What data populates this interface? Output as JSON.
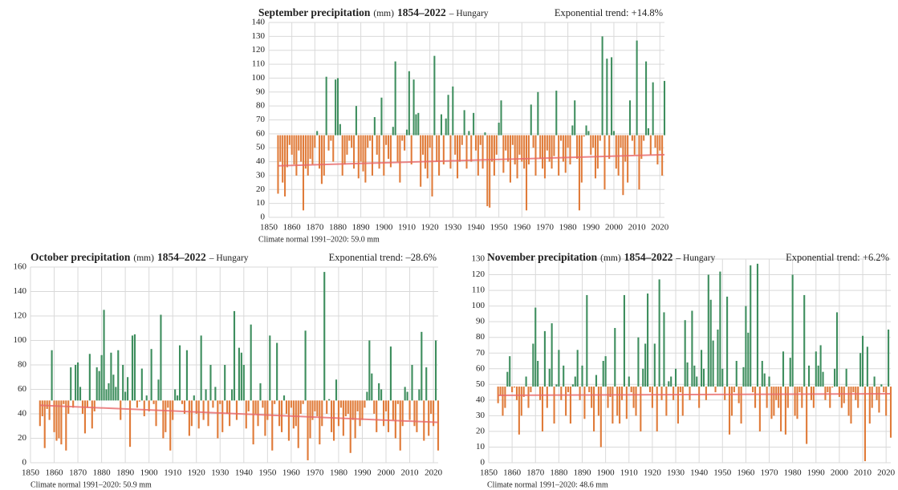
{
  "chart_data": [
    {
      "type": "bar",
      "title": "September precipitation",
      "unit": "(mm)",
      "period": "1854–2022",
      "region": "– Hungary",
      "trend_label": "Exponential trend: +14.8%",
      "note": "Climate normal 1991–2020: 59.0 mm",
      "baseline": 59,
      "trend_line": [
        37,
        45
      ],
      "trend_color": "#e8696a",
      "color_above": "#3e8e5e",
      "color_below": "#e07b39",
      "grid": true,
      "xlim": [
        1850,
        2022
      ],
      "xticks": [
        1850,
        1860,
        1870,
        1880,
        1890,
        1900,
        1910,
        1920,
        1930,
        1940,
        1950,
        1960,
        1970,
        1980,
        1990,
        2000,
        2010,
        2020
      ],
      "ylim": [
        0,
        140
      ],
      "yticks": [
        0,
        10,
        20,
        30,
        40,
        50,
        60,
        70,
        80,
        90,
        100,
        110,
        120,
        130,
        140
      ],
      "x": [
        1854,
        1855,
        1856,
        1857,
        1858,
        1859,
        1860,
        1861,
        1862,
        1863,
        1864,
        1865,
        1866,
        1867,
        1868,
        1869,
        1870,
        1871,
        1872,
        1873,
        1874,
        1875,
        1876,
        1877,
        1878,
        1879,
        1880,
        1881,
        1882,
        1883,
        1884,
        1885,
        1886,
        1887,
        1888,
        1889,
        1890,
        1891,
        1892,
        1893,
        1894,
        1895,
        1896,
        1897,
        1898,
        1899,
        1900,
        1901,
        1902,
        1903,
        1904,
        1905,
        1906,
        1907,
        1908,
        1909,
        1910,
        1911,
        1912,
        1913,
        1914,
        1915,
        1916,
        1917,
        1918,
        1919,
        1920,
        1921,
        1922,
        1923,
        1924,
        1925,
        1926,
        1927,
        1928,
        1929,
        1930,
        1931,
        1932,
        1933,
        1934,
        1935,
        1936,
        1937,
        1938,
        1939,
        1940,
        1941,
        1942,
        1943,
        1944,
        1945,
        1946,
        1947,
        1948,
        1949,
        1950,
        1951,
        1952,
        1953,
        1954,
        1955,
        1956,
        1957,
        1958,
        1959,
        1960,
        1961,
        1962,
        1963,
        1964,
        1965,
        1966,
        1967,
        1968,
        1969,
        1970,
        1971,
        1972,
        1973,
        1974,
        1975,
        1976,
        1977,
        1978,
        1979,
        1980,
        1981,
        1982,
        1983,
        1984,
        1985,
        1986,
        1987,
        1988,
        1989,
        1990,
        1991,
        1992,
        1993,
        1994,
        1995,
        1996,
        1997,
        1998,
        1999,
        2000,
        2001,
        2002,
        2003,
        2004,
        2005,
        2006,
        2007,
        2008,
        2009,
        2010,
        2011,
        2012,
        2013,
        2014,
        2015,
        2016,
        2017,
        2018,
        2019,
        2020,
        2021,
        2022
      ],
      "values": [
        17,
        40,
        25,
        15,
        36,
        52,
        45,
        38,
        30,
        48,
        40,
        5,
        35,
        30,
        42,
        38,
        50,
        62,
        35,
        24,
        30,
        101,
        48,
        55,
        40,
        99,
        100,
        67,
        30,
        38,
        45,
        55,
        50,
        35,
        80,
        28,
        40,
        33,
        25,
        50,
        55,
        30,
        72,
        45,
        35,
        86,
        30,
        52,
        42,
        36,
        65,
        112,
        40,
        25,
        55,
        48,
        63,
        105,
        38,
        99,
        74,
        75,
        22,
        45,
        35,
        28,
        50,
        15,
        116,
        40,
        30,
        74,
        38,
        71,
        88,
        35,
        94,
        45,
        28,
        40,
        52,
        77,
        35,
        62,
        40,
        75,
        48,
        30,
        52,
        35,
        61,
        8,
        7,
        40,
        30,
        45,
        68,
        84,
        32,
        48,
        40,
        25,
        52,
        38,
        28,
        45,
        40,
        35,
        5,
        38,
        81,
        50,
        30,
        90,
        42,
        35,
        28,
        48,
        40,
        35,
        44,
        91,
        30,
        55,
        40,
        32,
        50,
        38,
        66,
        84,
        42,
        5,
        25,
        58,
        66,
        62,
        45,
        50,
        28,
        35,
        55,
        130,
        20,
        114,
        42,
        115,
        62,
        35,
        30,
        50,
        16,
        40,
        25,
        84,
        55,
        45,
        127,
        20,
        42,
        55,
        112,
        64,
        45,
        97,
        50,
        38,
        48,
        30,
        98
      ]
    },
    {
      "type": "bar",
      "title": "October precipitation",
      "unit": "(mm)",
      "period": "1854–2022",
      "region": "– Hungary",
      "trend_label": "Exponential trend: –28.6%",
      "note": "Climate normal 1991–2020: 50.9 mm",
      "baseline": 50.9,
      "trend_line": [
        47,
        33
      ],
      "trend_color": "#e8696a",
      "color_above": "#3e8e5e",
      "color_below": "#e07b39",
      "grid": true,
      "xlim": [
        1850,
        2022
      ],
      "xticks": [
        1850,
        1860,
        1870,
        1880,
        1890,
        1900,
        1910,
        1920,
        1930,
        1940,
        1950,
        1960,
        1970,
        1980,
        1990,
        2000,
        2010,
        2020
      ],
      "ylim": [
        0,
        160
      ],
      "yticks": [
        0,
        20,
        40,
        60,
        80,
        100,
        120,
        140,
        160
      ],
      "x": [
        1854,
        1855,
        1856,
        1857,
        1858,
        1859,
        1860,
        1861,
        1862,
        1863,
        1864,
        1865,
        1866,
        1867,
        1868,
        1869,
        1870,
        1871,
        1872,
        1873,
        1874,
        1875,
        1876,
        1877,
        1878,
        1879,
        1880,
        1881,
        1882,
        1883,
        1884,
        1885,
        1886,
        1887,
        1888,
        1889,
        1890,
        1891,
        1892,
        1893,
        1894,
        1895,
        1896,
        1897,
        1898,
        1899,
        1900,
        1901,
        1902,
        1903,
        1904,
        1905,
        1906,
        1907,
        1908,
        1909,
        1910,
        1911,
        1912,
        1913,
        1914,
        1915,
        1916,
        1917,
        1918,
        1919,
        1920,
        1921,
        1922,
        1923,
        1924,
        1925,
        1926,
        1927,
        1928,
        1929,
        1930,
        1931,
        1932,
        1933,
        1934,
        1935,
        1936,
        1937,
        1938,
        1939,
        1940,
        1941,
        1942,
        1943,
        1944,
        1945,
        1946,
        1947,
        1948,
        1949,
        1950,
        1951,
        1952,
        1953,
        1954,
        1955,
        1956,
        1957,
        1958,
        1959,
        1960,
        1961,
        1962,
        1963,
        1964,
        1965,
        1966,
        1967,
        1968,
        1969,
        1970,
        1971,
        1972,
        1973,
        1974,
        1975,
        1976,
        1977,
        1978,
        1979,
        1980,
        1981,
        1982,
        1983,
        1984,
        1985,
        1986,
        1987,
        1988,
        1989,
        1990,
        1991,
        1992,
        1993,
        1994,
        1995,
        1996,
        1997,
        1998,
        1999,
        2000,
        2001,
        2002,
        2003,
        2004,
        2005,
        2006,
        2007,
        2008,
        2009,
        2010,
        2011,
        2012,
        2013,
        2014,
        2015,
        2016,
        2017,
        2018,
        2019,
        2020,
        2021,
        2022
      ],
      "values": [
        30,
        38,
        12,
        44,
        35,
        92,
        25,
        18,
        20,
        15,
        48,
        10,
        40,
        78,
        45,
        80,
        82,
        62,
        40,
        24,
        45,
        89,
        28,
        42,
        78,
        75,
        88,
        125,
        60,
        65,
        90,
        72,
        62,
        92,
        35,
        80,
        58,
        70,
        13,
        104,
        105,
        45,
        50,
        77,
        38,
        55,
        42,
        93,
        48,
        30,
        68,
        121,
        20,
        25,
        45,
        10,
        35,
        60,
        55,
        96,
        48,
        40,
        92,
        22,
        30,
        55,
        40,
        28,
        104,
        35,
        60,
        30,
        80,
        45,
        62,
        20,
        48,
        25,
        80,
        40,
        30,
        60,
        124,
        35,
        94,
        90,
        80,
        28,
        42,
        113,
        15,
        40,
        30,
        65,
        45,
        22,
        35,
        104,
        10,
        48,
        98,
        30,
        25,
        55,
        40,
        18,
        45,
        28,
        30,
        12,
        40,
        48,
        108,
        2,
        20,
        35,
        42,
        38,
        15,
        30,
        156,
        40,
        52,
        25,
        18,
        68,
        30,
        45,
        22,
        38,
        40,
        8,
        35,
        20,
        42,
        30,
        35,
        45,
        58,
        100,
        73,
        40,
        25,
        65,
        60,
        30,
        42,
        25,
        95,
        35,
        20,
        48,
        10,
        30,
        62,
        58,
        35,
        80,
        30,
        25,
        60,
        107,
        18,
        78,
        22,
        40,
        30,
        100,
        10
      ]
    },
    {
      "type": "bar",
      "title": "November precipitation",
      "unit": "(mm)",
      "period": "1854–2022",
      "region": "– Hungary",
      "trend_label": "Exponential trend: +6.2%",
      "note": "Climate normal 1991–2020: 48.6 mm",
      "baseline": 48.6,
      "trend_line": [
        43,
        44
      ],
      "trend_color": "#e8696a",
      "color_above": "#3e8e5e",
      "color_below": "#e07b39",
      "grid": true,
      "xlim": [
        1850,
        2022
      ],
      "xticks": [
        1850,
        1860,
        1870,
        1880,
        1890,
        1900,
        1910,
        1920,
        1930,
        1940,
        1950,
        1960,
        1970,
        1980,
        1990,
        2000,
        2010,
        2020
      ],
      "ylim": [
        0,
        130
      ],
      "yticks": [
        0,
        10,
        20,
        30,
        40,
        50,
        60,
        70,
        80,
        90,
        100,
        110,
        120,
        130
      ],
      "x": [
        1854,
        1855,
        1856,
        1857,
        1858,
        1859,
        1860,
        1861,
        1862,
        1863,
        1864,
        1865,
        1866,
        1867,
        1868,
        1869,
        1870,
        1871,
        1872,
        1873,
        1874,
        1875,
        1876,
        1877,
        1878,
        1879,
        1880,
        1881,
        1882,
        1883,
        1884,
        1885,
        1886,
        1887,
        1888,
        1889,
        1890,
        1891,
        1892,
        1893,
        1894,
        1895,
        1896,
        1897,
        1898,
        1899,
        1900,
        1901,
        1902,
        1903,
        1904,
        1905,
        1906,
        1907,
        1908,
        1909,
        1910,
        1911,
        1912,
        1913,
        1914,
        1915,
        1916,
        1917,
        1918,
        1919,
        1920,
        1921,
        1922,
        1923,
        1924,
        1925,
        1926,
        1927,
        1928,
        1929,
        1930,
        1931,
        1932,
        1933,
        1934,
        1935,
        1936,
        1937,
        1938,
        1939,
        1940,
        1941,
        1942,
        1943,
        1944,
        1945,
        1946,
        1947,
        1948,
        1949,
        1950,
        1951,
        1952,
        1953,
        1954,
        1955,
        1956,
        1957,
        1958,
        1959,
        1960,
        1961,
        1962,
        1963,
        1964,
        1965,
        1966,
        1967,
        1968,
        1969,
        1970,
        1971,
        1972,
        1973,
        1974,
        1975,
        1976,
        1977,
        1978,
        1979,
        1980,
        1981,
        1982,
        1983,
        1984,
        1985,
        1986,
        1987,
        1988,
        1989,
        1990,
        1991,
        1992,
        1993,
        1994,
        1995,
        1996,
        1997,
        1998,
        1999,
        2000,
        2001,
        2002,
        2003,
        2004,
        2005,
        2006,
        2007,
        2008,
        2009,
        2010,
        2011,
        2012,
        2013,
        2014,
        2015,
        2016,
        2017,
        2018,
        2019,
        2020,
        2021,
        2022
      ],
      "values": [
        38,
        43,
        30,
        35,
        58,
        68,
        45,
        48,
        40,
        18,
        30,
        42,
        55,
        35,
        45,
        76,
        99,
        65,
        40,
        20,
        84,
        35,
        60,
        89,
        25,
        50,
        72,
        40,
        62,
        30,
        45,
        25,
        50,
        55,
        72,
        40,
        62,
        28,
        107,
        45,
        35,
        20,
        56,
        30,
        10,
        65,
        68,
        35,
        42,
        25,
        86,
        30,
        25,
        40,
        107,
        28,
        55,
        45,
        35,
        30,
        80,
        20,
        60,
        76,
        108,
        45,
        35,
        76,
        20,
        117,
        40,
        96,
        30,
        52,
        55,
        40,
        60,
        25,
        45,
        30,
        91,
        64,
        40,
        97,
        62,
        55,
        35,
        72,
        60,
        40,
        120,
        104,
        78,
        45,
        85,
        122,
        60,
        40,
        106,
        18,
        30,
        45,
        65,
        38,
        25,
        61,
        100,
        83,
        126,
        45,
        35,
        127,
        20,
        65,
        57,
        35,
        55,
        28,
        30,
        40,
        35,
        20,
        71,
        18,
        35,
        67,
        120,
        30,
        28,
        45,
        35,
        107,
        12,
        62,
        40,
        35,
        71,
        62,
        75,
        58,
        40,
        45,
        35,
        48,
        60,
        96,
        42,
        35,
        38,
        60,
        30,
        25,
        45,
        40,
        35,
        70,
        81,
        1,
        74,
        25,
        35,
        55,
        40,
        32,
        50,
        45,
        30,
        85,
        16
      ]
    }
  ]
}
